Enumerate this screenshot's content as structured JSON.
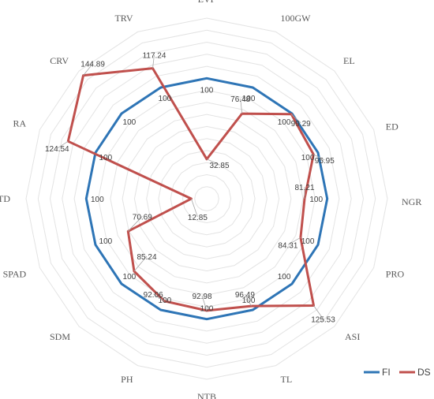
{
  "chart_data": {
    "type": "radar",
    "title": "",
    "axes": [
      "EVP",
      "100GW",
      "EL",
      "ED",
      "NGR",
      "PRO",
      "ASI",
      "TL",
      "NTB",
      "PH",
      "SDM",
      "SPAD",
      "CTD",
      "RA",
      "CRV",
      "TRV"
    ],
    "rlim": [
      0,
      150
    ],
    "grid": true,
    "legend_position": "bottom-right",
    "colors": {
      "FI": "#2e75b6",
      "DS": "#c0504d",
      "grid": "#e3e3e3"
    },
    "series": [
      {
        "name": "FI",
        "values": [
          100,
          100,
          100,
          100,
          100,
          100,
          100,
          100,
          100,
          100,
          100,
          100,
          100,
          100,
          100,
          100
        ]
      },
      {
        "name": "DS",
        "values": [
          32.85,
          76.48,
          99.29,
          95.95,
          81.21,
          84.31,
          125.53,
          96.49,
          92.98,
          92.06,
          85.24,
          70.69,
          12.85,
          124.54,
          144.89,
          117.24
        ]
      }
    ],
    "labels": {
      "FI": [
        "100",
        "100",
        "100",
        "100",
        "100",
        "100",
        "100",
        "100",
        "100",
        "100",
        "100",
        "100",
        "100",
        "100",
        "100",
        "100"
      ],
      "DS": [
        "32.85",
        "76.48",
        "99.29",
        "95.95",
        "81.21",
        "84.31",
        "125.53",
        "96.49",
        "92.98",
        "92.06",
        "85.24",
        "70.69",
        "12.85",
        "124.54",
        "144.89",
        "117.24"
      ]
    }
  }
}
